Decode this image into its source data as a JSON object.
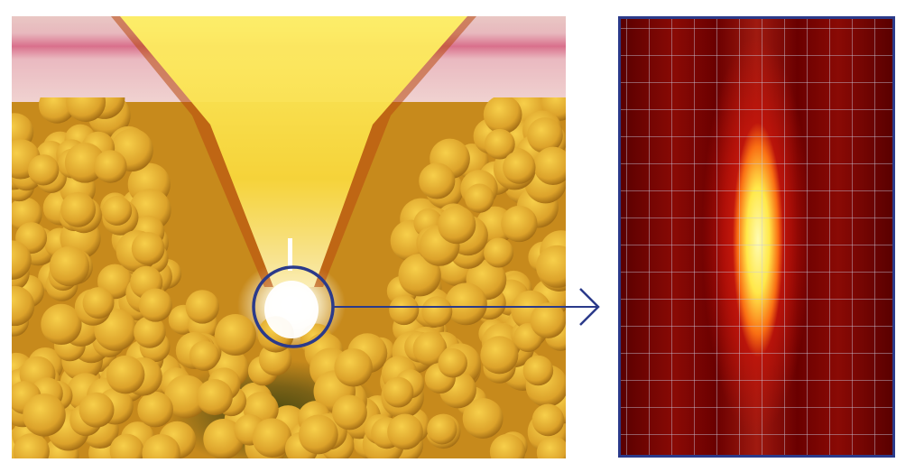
{
  "colors": {
    "annotation": "#2b3a8a",
    "beam": "#fff04a",
    "particles": "#e0a828",
    "heatmap_hot": "#fffbb0",
    "heatmap_background": "#6a0000"
  },
  "icons": {
    "focus_marker": "circle",
    "connector": "arrow-right"
  }
}
